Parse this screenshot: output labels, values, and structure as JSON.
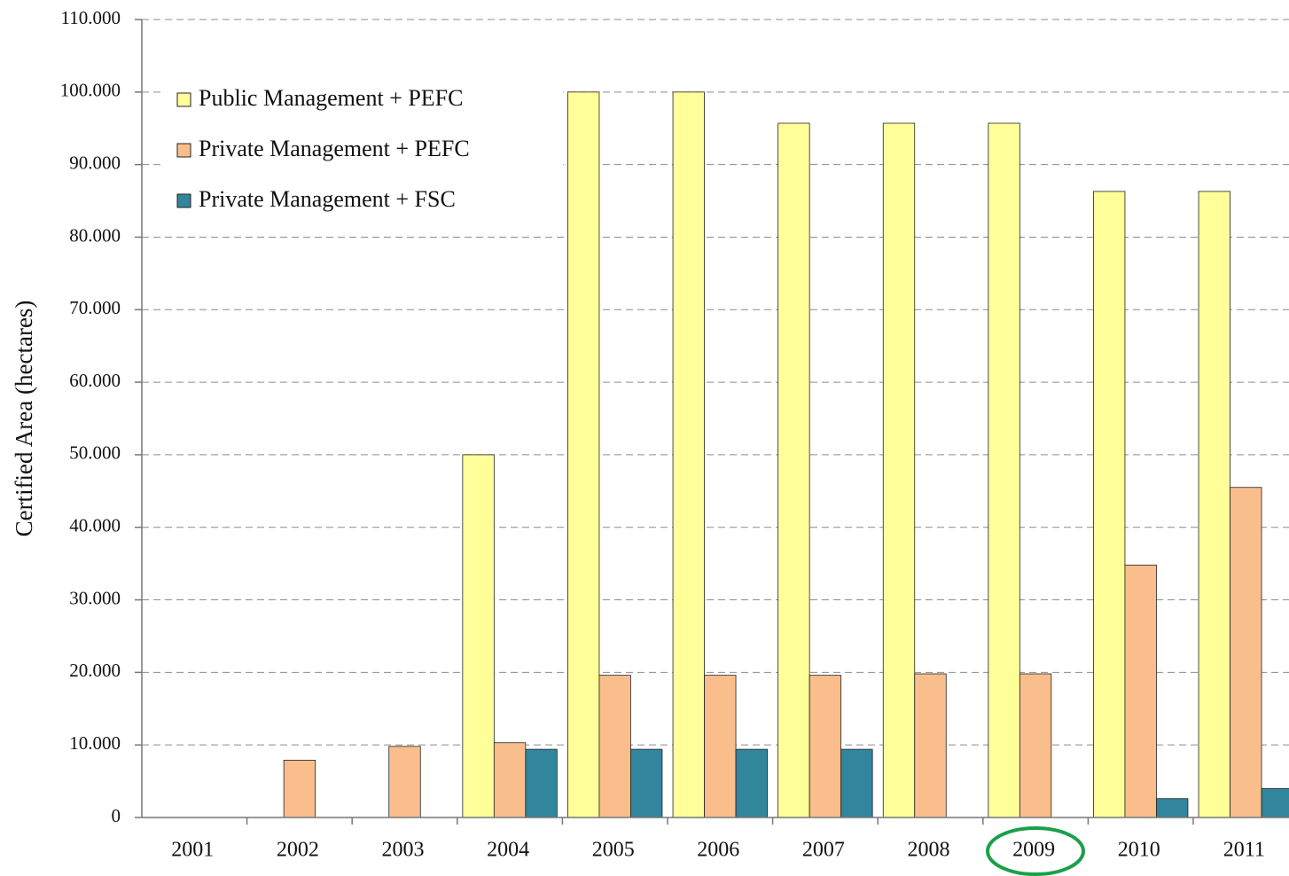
{
  "chart_data": {
    "type": "bar",
    "y_axis_label": "Certified Area (hectares)",
    "categories": [
      "2001",
      "2002",
      "2003",
      "2004",
      "2005",
      "2006",
      "2007",
      "2008",
      "2009",
      "2010",
      "2011"
    ],
    "series": [
      {
        "name": "Public Management + PEFC",
        "color": "#ffff99",
        "values": [
          0,
          0,
          0,
          50000,
          100000,
          100000,
          95700,
          95700,
          95700,
          86300,
          86300
        ]
      },
      {
        "name": "Private Management + PEFC",
        "color": "#f9be8c",
        "values": [
          0,
          7900,
          9800,
          10300,
          19600,
          19600,
          19600,
          19800,
          19800,
          34800,
          45500
        ]
      },
      {
        "name": "Private Management + FSC",
        "color": "#31859c",
        "values": [
          0,
          0,
          0,
          9400,
          9400,
          9400,
          9400,
          0,
          0,
          2600,
          4000
        ]
      }
    ],
    "ylim": [
      0,
      110000
    ],
    "yticks": [
      0,
      {
        "value": 10000,
        "label": "10.000"
      },
      {
        "value": 20000,
        "label": "20.000"
      },
      {
        "value": 30000,
        "label": "30.000"
      },
      {
        "value": 40000,
        "label": "40.000"
      },
      {
        "value": 50000,
        "label": "50.000"
      },
      {
        "value": 60000,
        "label": "60.000"
      },
      {
        "value": 70000,
        "label": "70.000"
      },
      {
        "value": 80000,
        "label": "80.000"
      },
      {
        "value": 90000,
        "label": "90.000"
      },
      {
        "value": 100000,
        "label": "100.000"
      },
      {
        "value": 110000,
        "label": "110.000"
      }
    ],
    "grid": true,
    "legend": "upper left"
  }
}
